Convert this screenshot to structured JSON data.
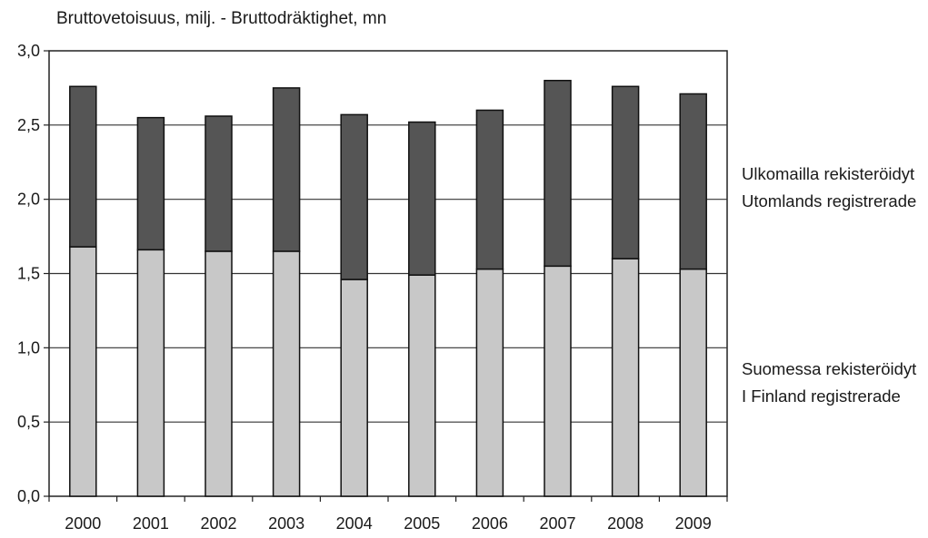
{
  "chart_data": {
    "type": "bar",
    "stacked": true,
    "title": "Bruttovetoisuus, milj. - Bruttodräktighet, mn",
    "xlabel": "",
    "ylabel": "",
    "ylim": [
      0,
      3.0
    ],
    "yticks": [
      "0,0",
      "0,5",
      "1,0",
      "1,5",
      "2,0",
      "2,5",
      "3,0"
    ],
    "ytick_values": [
      0,
      0.5,
      1.0,
      1.5,
      2.0,
      2.5,
      3.0
    ],
    "grid": true,
    "categories": [
      "2000",
      "2001",
      "2002",
      "2003",
      "2004",
      "2005",
      "2006",
      "2007",
      "2008",
      "2009"
    ],
    "series": [
      {
        "name": "Suomessa rekisteröidyt / I Finland registrerade",
        "label_lines": [
          "Suomessa rekisteröidyt",
          "I Finland registrerade"
        ],
        "color": "#c8c8c8",
        "values": [
          1.68,
          1.66,
          1.65,
          1.65,
          1.46,
          1.49,
          1.53,
          1.55,
          1.6,
          1.53
        ]
      },
      {
        "name": "Ulkomailla rekisteröidyt / Utomlands registrerade",
        "label_lines": [
          "Ulkomailla rekisteröidyt",
          "Utomlands registrerade"
        ],
        "color": "#555555",
        "values": [
          1.08,
          0.89,
          0.91,
          1.1,
          1.11,
          1.03,
          1.07,
          1.25,
          1.16,
          1.18
        ]
      }
    ],
    "legend": "right"
  }
}
